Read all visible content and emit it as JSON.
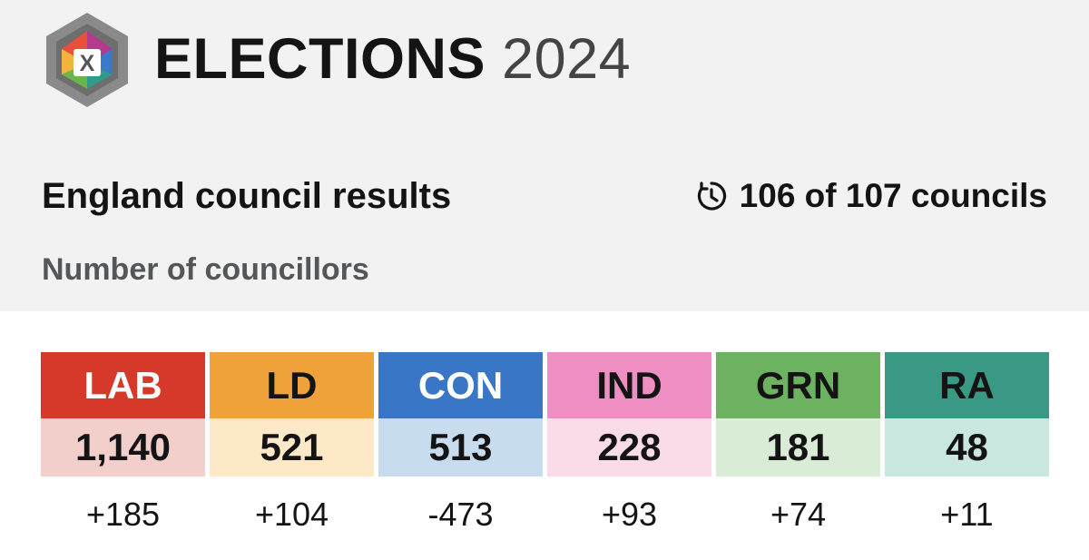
{
  "header": {
    "brand": "ELECTIONS",
    "year": "2024",
    "logo_letter": "X"
  },
  "title": "England council results",
  "status": {
    "icon": "clock-icon",
    "text": "106 of 107 councils"
  },
  "subtitle": "Number of councillors",
  "chart_data": {
    "type": "table",
    "title": "England council results",
    "subtitle": "Number of councillors",
    "columns": [
      "LAB",
      "LD",
      "CON",
      "IND",
      "GRN",
      "RA"
    ],
    "rows": [
      {
        "party": "LAB",
        "councillors": "1,140",
        "change": "+185",
        "color": "#d6382a",
        "tint": "#f2cfcb",
        "text_color": "#ffffff"
      },
      {
        "party": "LD",
        "councillors": "521",
        "change": "+104",
        "color": "#f0a23a",
        "tint": "#fde8c8",
        "text_color": "#141414"
      },
      {
        "party": "CON",
        "councillors": "513",
        "change": "-473",
        "color": "#3976c6",
        "tint": "#c8dcef",
        "text_color": "#ffffff"
      },
      {
        "party": "IND",
        "councillors": "228",
        "change": "+93",
        "color": "#ee8ec3",
        "tint": "#f9dbea",
        "text_color": "#141414"
      },
      {
        "party": "GRN",
        "councillors": "181",
        "change": "+74",
        "color": "#6cb261",
        "tint": "#d9ecd6",
        "text_color": "#141414"
      },
      {
        "party": "RA",
        "councillors": "48",
        "change": "+11",
        "color": "#3a9985",
        "tint": "#c9e6df",
        "text_color": "#141414"
      }
    ]
  }
}
